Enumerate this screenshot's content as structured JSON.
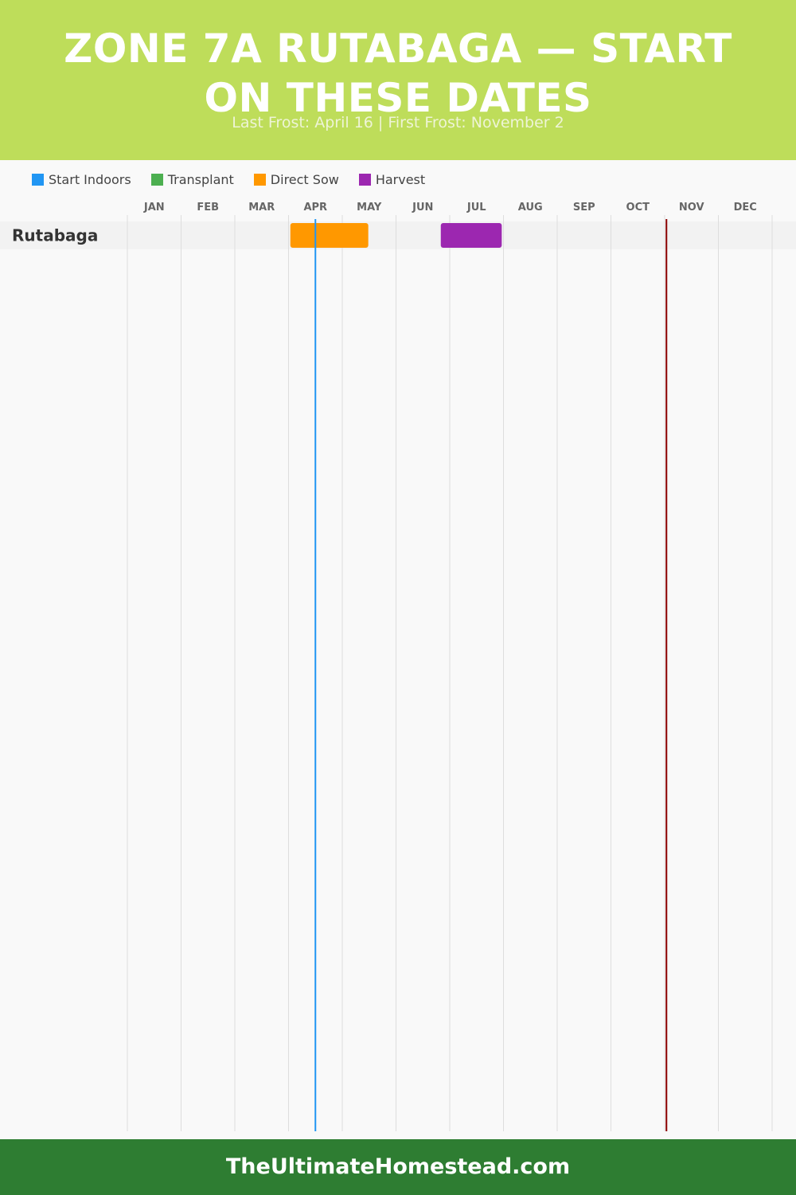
{
  "header": {
    "title": "ZONE 7A RUTABAGA — START ON THESE DATES",
    "subtitle": "Last Frost: April 16 | First Frost: November 2"
  },
  "legend": [
    {
      "label": "Start Indoors",
      "color": "#2196f3"
    },
    {
      "label": "Transplant",
      "color": "#4caf50"
    },
    {
      "label": "Direct Sow",
      "color": "#ff9800"
    },
    {
      "label": "Harvest",
      "color": "#9c27b0"
    }
  ],
  "chart_data": {
    "type": "gantt",
    "months": [
      "JAN",
      "FEB",
      "MAR",
      "APR",
      "MAY",
      "JUN",
      "JUL",
      "AUG",
      "SEP",
      "OCT",
      "NOV",
      "DEC"
    ],
    "rows": [
      {
        "label": "Rutabaga",
        "bars": [
          {
            "phase": "Direct Sow",
            "start": "04-02",
            "end": "05-16"
          },
          {
            "phase": "Harvest",
            "start": "06-26",
            "end": "07-31"
          }
        ]
      }
    ],
    "markers": [
      {
        "name": "Last Frost",
        "date": "04-16",
        "color": "#2196f3"
      },
      {
        "name": "First Frost",
        "date": "11-02",
        "color": "#8b0000"
      }
    ]
  },
  "footer": {
    "text": "TheUltimateHomestead.com"
  }
}
